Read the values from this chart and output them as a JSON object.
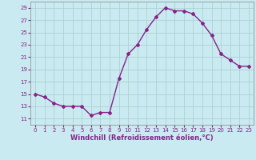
{
  "x": [
    0,
    1,
    2,
    3,
    4,
    5,
    6,
    7,
    8,
    9,
    10,
    11,
    12,
    13,
    14,
    15,
    16,
    17,
    18,
    19,
    20,
    21,
    22,
    23
  ],
  "y": [
    15,
    14.5,
    13.5,
    13,
    13,
    13,
    11.5,
    12,
    12,
    17.5,
    21.5,
    23,
    25.5,
    27.5,
    29,
    28.5,
    28.5,
    28,
    26.5,
    24.5,
    21.5,
    20.5,
    19.5,
    19.5
  ],
  "line_color": "#882288",
  "marker": "D",
  "marker_size": 2.0,
  "bg_color": "#c8eaf0",
  "grid_color": "#aacccc",
  "xlabel": "Windchill (Refroidissement éolien,°C)",
  "xlabel_color": "#882288",
  "tick_color": "#882288",
  "xlim": [
    -0.5,
    23.5
  ],
  "ylim": [
    10,
    30
  ],
  "yticks": [
    11,
    13,
    15,
    17,
    19,
    21,
    23,
    25,
    27,
    29
  ],
  "xticks": [
    0,
    1,
    2,
    3,
    4,
    5,
    6,
    7,
    8,
    9,
    10,
    11,
    12,
    13,
    14,
    15,
    16,
    17,
    18,
    19,
    20,
    21,
    22,
    23
  ],
  "linewidth": 1.0,
  "tick_fontsize": 5.0,
  "xlabel_fontsize": 6.0
}
